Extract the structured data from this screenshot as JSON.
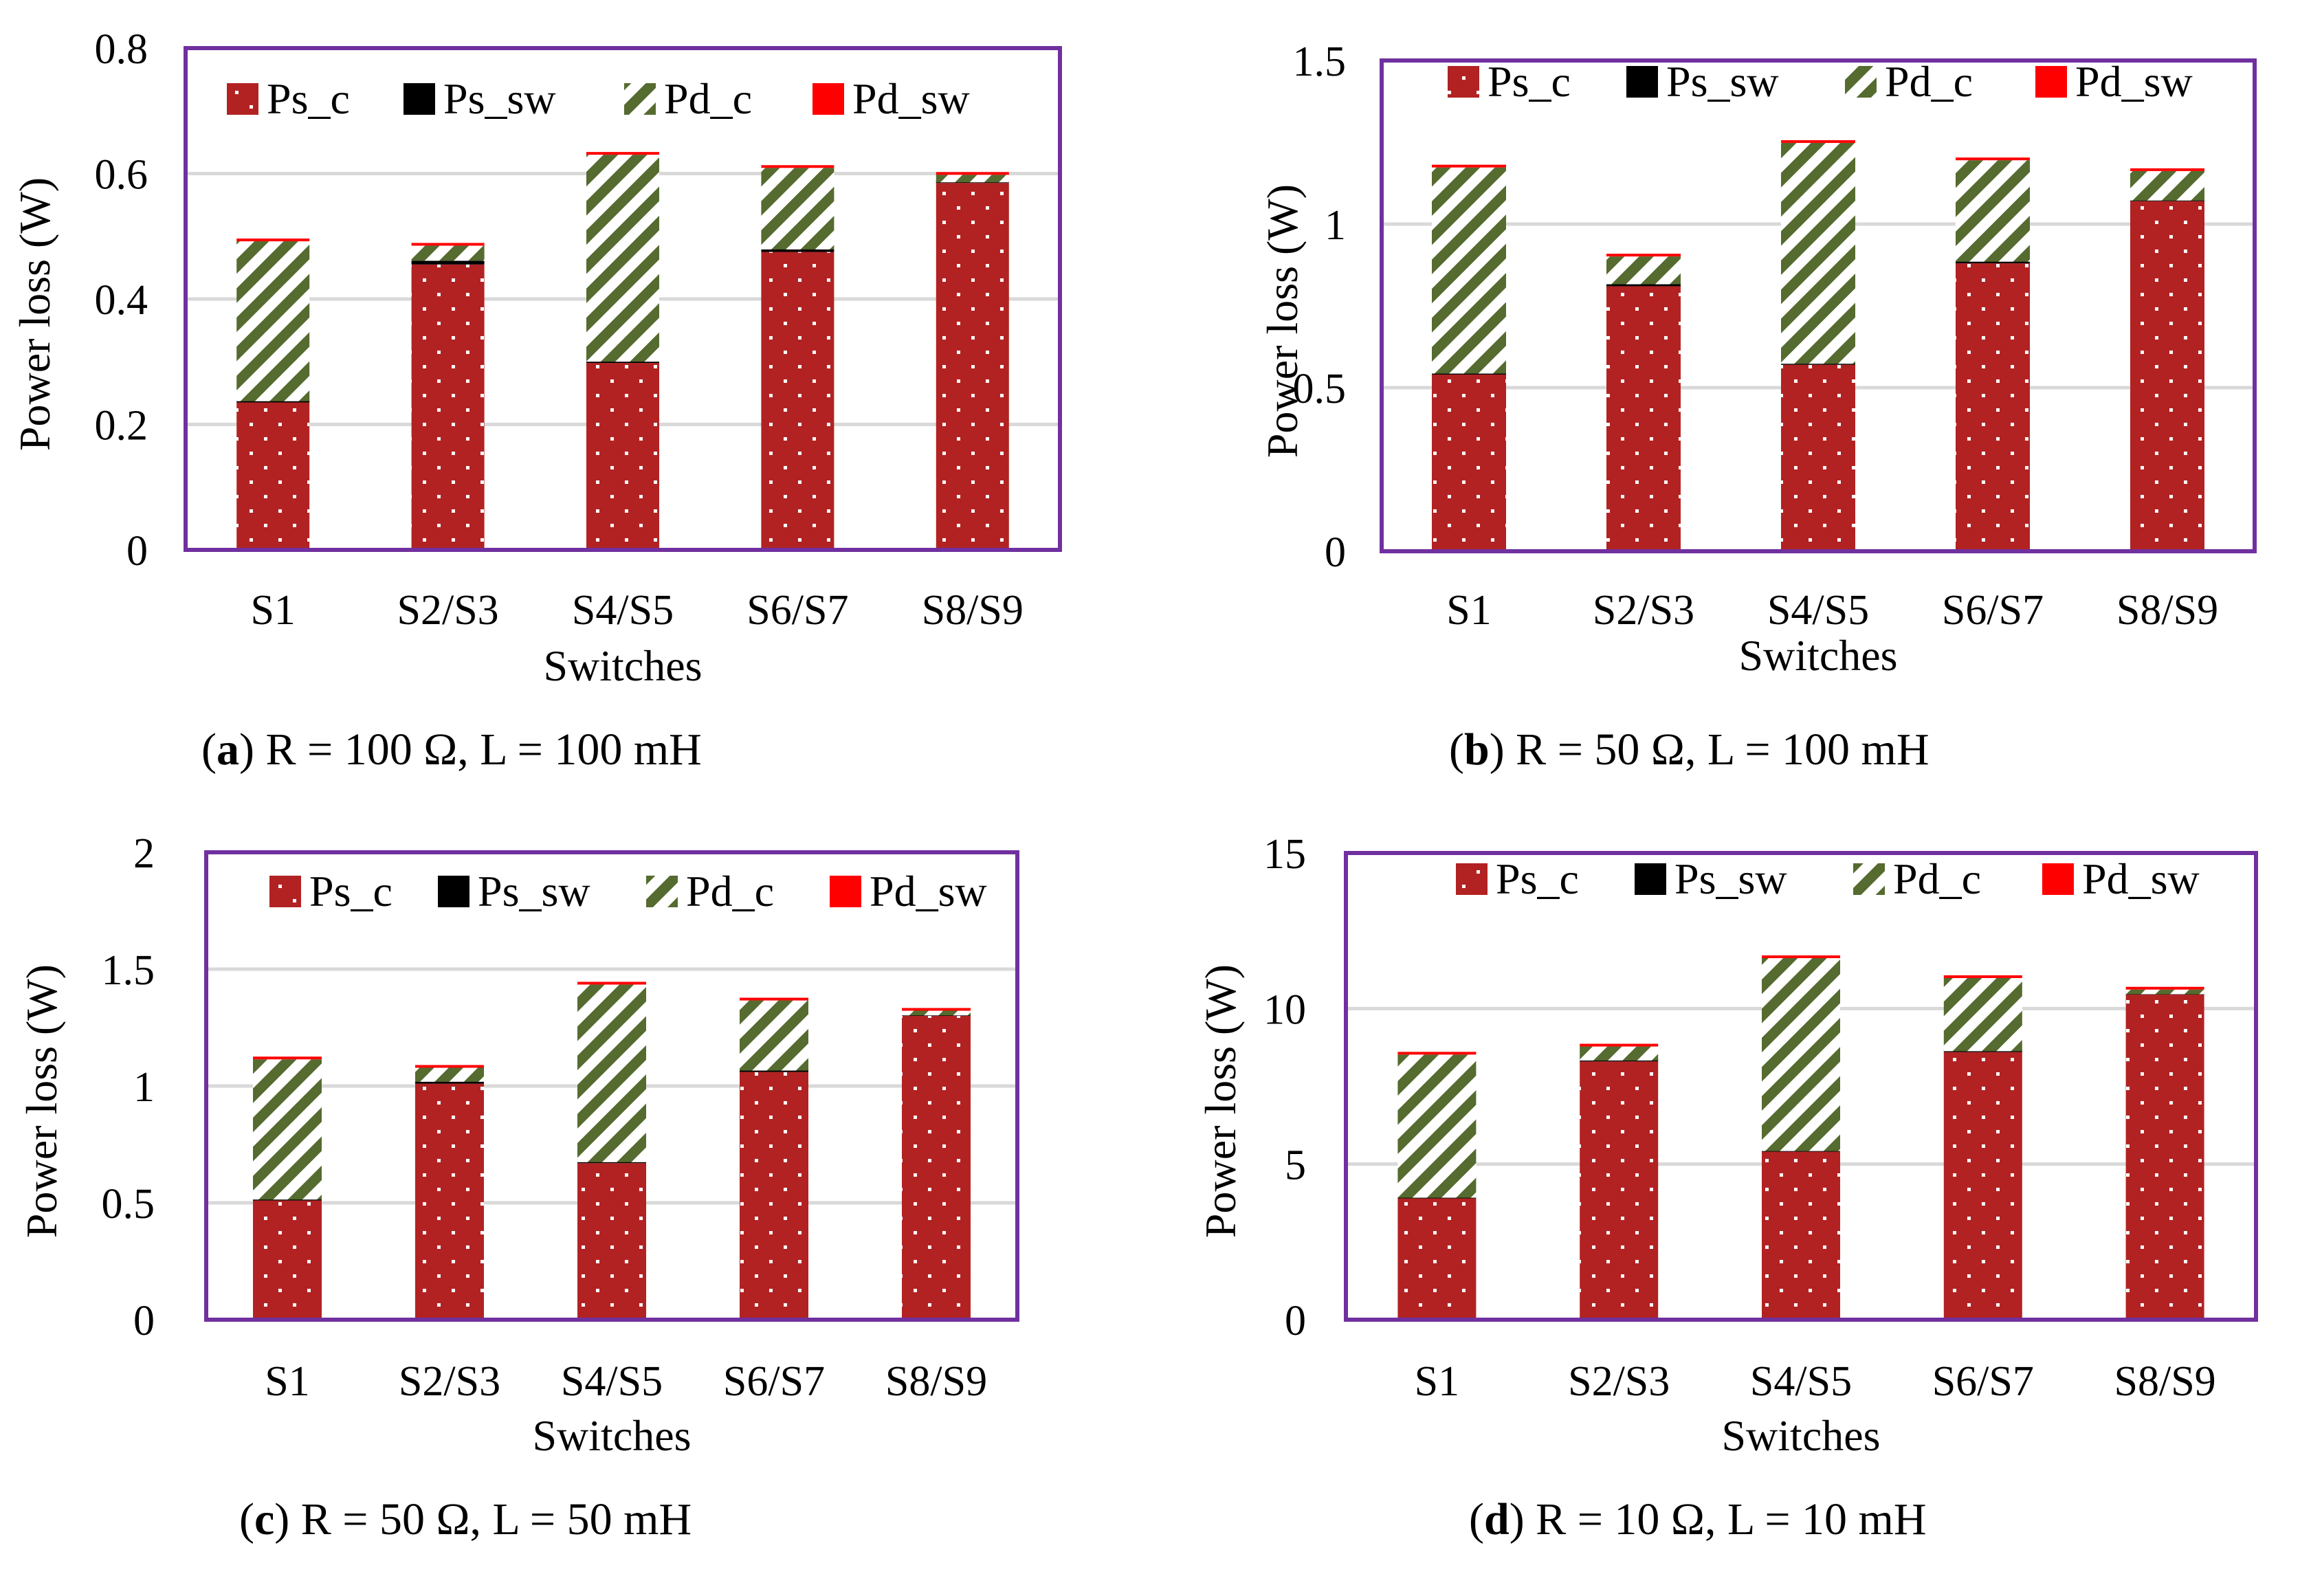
{
  "series_colors": {
    "Ps_c": "#b22222",
    "Ps_sw": "#000000",
    "Pd_c": "#556b2f",
    "Pd_sw": "#ff0000",
    "frame": "#7030a0",
    "grid": "#d9d9d9"
  },
  "chart_data": [
    {
      "type": "bar",
      "stacked": true,
      "panel_letter": "a",
      "caption": ") R = 100 Ω, L = 100 mH",
      "categories": [
        "S1",
        "S2/S3",
        "S4/S5",
        "S6/S7",
        "S8/S9"
      ],
      "xlabel": "Switches",
      "ylabel": "Power loss (W)",
      "ylim": [
        0,
        0.8
      ],
      "yticks": [
        0,
        0.2,
        0.4,
        0.6,
        0.8
      ],
      "yticklabels": [
        "0",
        "0.2",
        "0.4",
        "0.6",
        "0.8"
      ],
      "grid": true,
      "legend_position": "top",
      "series": [
        {
          "name": "Ps_c",
          "values": [
            0.235,
            0.455,
            0.298,
            0.475,
            0.585
          ]
        },
        {
          "name": "Ps_sw",
          "values": [
            0.002,
            0.006,
            0.002,
            0.004,
            0.001
          ]
        },
        {
          "name": "Pd_c",
          "values": [
            0.255,
            0.024,
            0.33,
            0.13,
            0.012
          ]
        },
        {
          "name": "Pd_sw",
          "values": [
            0.003,
            0.002,
            0.003,
            0.003,
            0.002
          ]
        }
      ]
    },
    {
      "type": "bar",
      "stacked": true,
      "panel_letter": "b",
      "caption": ") R = 50 Ω, L = 100 mH",
      "categories": [
        "S1",
        "S2/S3",
        "S4/S5",
        "S6/S7",
        "S8/S9"
      ],
      "xlabel": "Switches",
      "ylabel": "Power loss (W)",
      "ylim": [
        0,
        1.5
      ],
      "yticks": [
        0,
        0.5,
        1,
        1.5
      ],
      "yticklabels": [
        "0",
        "0.5",
        "1",
        "1.5"
      ],
      "grid": true,
      "legend_position": "top",
      "series": [
        {
          "name": "Ps_c",
          "values": [
            0.54,
            0.81,
            0.57,
            0.88,
            1.07
          ]
        },
        {
          "name": "Ps_sw",
          "values": [
            0.003,
            0.006,
            0.003,
            0.005,
            0.002
          ]
        },
        {
          "name": "Pd_c",
          "values": [
            0.63,
            0.085,
            0.675,
            0.31,
            0.09
          ]
        },
        {
          "name": "Pd_sw",
          "values": [
            0.005,
            0.003,
            0.005,
            0.005,
            0.003
          ]
        }
      ]
    },
    {
      "type": "bar",
      "stacked": true,
      "panel_letter": "c",
      "caption": ") R = 50 Ω, L = 50 mH",
      "categories": [
        "S1",
        "S2/S3",
        "S4/S5",
        "S6/S7",
        "S8/S9"
      ],
      "xlabel": "Switches",
      "ylabel": "Power loss (W)",
      "ylim": [
        0,
        2
      ],
      "yticks": [
        0,
        0.5,
        1,
        1.5,
        2
      ],
      "yticklabels": [
        "0",
        "0.5",
        "1",
        "1.5",
        "2"
      ],
      "grid": true,
      "legend_position": "top",
      "series": [
        {
          "name": "Ps_c",
          "values": [
            0.51,
            1.01,
            0.67,
            1.06,
            1.3
          ]
        },
        {
          "name": "Ps_sw",
          "values": [
            0.004,
            0.008,
            0.004,
            0.006,
            0.002
          ]
        },
        {
          "name": "Pd_c",
          "values": [
            0.6,
            0.06,
            0.76,
            0.3,
            0.02
          ]
        },
        {
          "name": "Pd_sw",
          "values": [
            0.006,
            0.004,
            0.006,
            0.006,
            0.004
          ]
        }
      ]
    },
    {
      "type": "bar",
      "stacked": true,
      "panel_letter": "d",
      "caption": ") R = 10 Ω, L = 10 mH",
      "categories": [
        "S1",
        "S2/S3",
        "S4/S5",
        "S6/S7",
        "S8/S9"
      ],
      "xlabel": "Switches",
      "ylabel": "Power loss (W)",
      "ylim": [
        0,
        15
      ],
      "yticks": [
        0,
        5,
        10,
        15
      ],
      "yticklabels": [
        "0",
        "5",
        "10",
        "15"
      ],
      "grid": true,
      "legend_position": "top",
      "series": [
        {
          "name": "Ps_c",
          "values": [
            3.9,
            8.3,
            5.4,
            8.6,
            10.45
          ]
        },
        {
          "name": "Ps_sw",
          "values": [
            0.02,
            0.03,
            0.02,
            0.03,
            0.01
          ]
        },
        {
          "name": "Pd_c",
          "values": [
            4.6,
            0.45,
            6.2,
            2.35,
            0.15
          ]
        },
        {
          "name": "Pd_sw",
          "values": [
            0.04,
            0.02,
            0.04,
            0.04,
            0.02
          ]
        }
      ]
    }
  ]
}
